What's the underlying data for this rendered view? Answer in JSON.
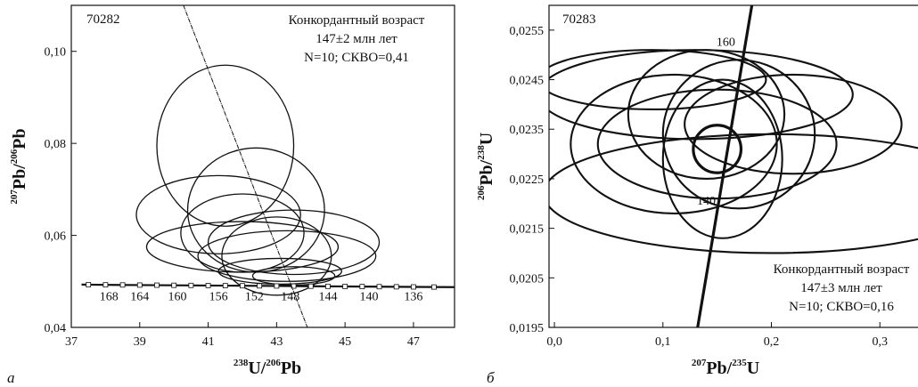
{
  "figure": {
    "panel_a_letter": "а",
    "panel_b_letter": "б"
  },
  "chart_data": [
    {
      "type": "scatter",
      "subtype": "Tera-Wasserburg concordia with error ellipses",
      "sample": "70282",
      "annotation": [
        "Конкордантный возраст",
        "147±2 млн лет",
        "N=10; СКВО=0,41"
      ],
      "xlabel": {
        "sup1": "238",
        "base1": "U/",
        "sup2": "206",
        "base2": "Pb"
      },
      "ylabel": {
        "sup1": "207",
        "base1": "Pb/",
        "sup2": "206",
        "base2": "Pb"
      },
      "xlim": [
        37,
        48.2
      ],
      "ylim": [
        0.04,
        0.11
      ],
      "xticks": [
        {
          "v": 37,
          "label": "37"
        },
        {
          "v": 39,
          "label": "39"
        },
        {
          "v": 41,
          "label": "41"
        },
        {
          "v": 43,
          "label": "43"
        },
        {
          "v": 45,
          "label": "45"
        },
        {
          "v": 47,
          "label": "47"
        }
      ],
      "yticks": [
        {
          "v": 0.04,
          "label": "0,04"
        },
        {
          "v": 0.06,
          "label": "0,06"
        },
        {
          "v": 0.08,
          "label": "0,08"
        },
        {
          "v": 0.1,
          "label": "0,10"
        }
      ],
      "concordia": {
        "points": [
          [
            37.3,
            0.0493
          ],
          [
            38.0,
            0.04925
          ],
          [
            39.0,
            0.0492
          ],
          [
            40.0,
            0.04915
          ],
          [
            41.0,
            0.0491
          ],
          [
            42.0,
            0.04905
          ],
          [
            43.0,
            0.049
          ],
          [
            44.0,
            0.04895
          ],
          [
            45.0,
            0.0489
          ],
          [
            46.0,
            0.04885
          ],
          [
            47.0,
            0.0488
          ],
          [
            48.2,
            0.04875
          ]
        ],
        "marker_x": [
          37.5,
          38.0,
          38.5,
          39.0,
          39.5,
          40.0,
          40.5,
          41.0,
          41.5,
          42.0,
          42.5,
          43.0,
          43.5,
          44.0,
          44.5,
          45.0,
          45.5,
          46.0,
          46.5,
          47.0,
          47.6
        ],
        "age_labels": [
          {
            "text": "168",
            "x": 38.1
          },
          {
            "text": "164",
            "x": 39.0
          },
          {
            "text": "160",
            "x": 40.1
          },
          {
            "text": "156",
            "x": 41.3
          },
          {
            "text": "152",
            "x": 42.35
          },
          {
            "text": "148",
            "x": 43.4
          },
          {
            "text": "144",
            "x": 44.5
          },
          {
            "text": "140",
            "x": 45.7
          },
          {
            "text": "136",
            "x": 47.0
          }
        ]
      },
      "regression_line": [
        [
          40.2,
          0.1115
        ],
        [
          43.9,
          0.04
        ]
      ],
      "ellipses": [
        {
          "cx": 41.5,
          "cy": 0.0795,
          "rx": 2.0,
          "ry": 0.0175
        },
        {
          "cx": 42.4,
          "cy": 0.0655,
          "rx": 2.0,
          "ry": 0.0135
        },
        {
          "cx": 41.3,
          "cy": 0.0645,
          "rx": 2.4,
          "ry": 0.0085
        },
        {
          "cx": 42.0,
          "cy": 0.0605,
          "rx": 1.8,
          "ry": 0.0085
        },
        {
          "cx": 42.0,
          "cy": 0.0575,
          "rx": 2.8,
          "ry": 0.0055
        },
        {
          "cx": 43.5,
          "cy": 0.0585,
          "rx": 2.5,
          "ry": 0.007
        },
        {
          "cx": 43.3,
          "cy": 0.0555,
          "rx": 2.6,
          "ry": 0.0055
        },
        {
          "cx": 43.0,
          "cy": 0.0555,
          "rx": 1.6,
          "ry": 0.0085
        },
        {
          "cx": 43.1,
          "cy": 0.0522,
          "rx": 1.8,
          "ry": 0.0028
        },
        {
          "cx": 43.5,
          "cy": 0.0512,
          "rx": 1.2,
          "ry": 0.002
        }
      ]
    },
    {
      "type": "scatter",
      "subtype": "Wetherill concordia with error ellipses",
      "sample": "70283",
      "annotation": [
        "Конкордантный возраст",
        "147±3 млн лет",
        "N=10; СКВО=0,16"
      ],
      "xlabel": {
        "sup1": "207",
        "base1": "Pb/",
        "sup2": "235",
        "base2": "U"
      },
      "ylabel": {
        "sup1": "206",
        "base1": "Pb/",
        "sup2": "238",
        "base2": "U"
      },
      "xlim": [
        -0.005,
        0.345
      ],
      "ylim": [
        0.0195,
        0.026
      ],
      "xticks": [
        {
          "v": 0.0,
          "label": "0,0"
        },
        {
          "v": 0.1,
          "label": "0,1"
        },
        {
          "v": 0.2,
          "label": "0,2"
        },
        {
          "v": 0.3,
          "label": "0,3"
        }
      ],
      "yticks": [
        {
          "v": 0.0195,
          "label": "0,0195"
        },
        {
          "v": 0.0205,
          "label": "0,0205"
        },
        {
          "v": 0.0215,
          "label": "0,0215"
        },
        {
          "v": 0.0225,
          "label": "0,0225"
        },
        {
          "v": 0.0235,
          "label": "0,0235"
        },
        {
          "v": 0.0245,
          "label": "0,0245"
        },
        {
          "v": 0.0255,
          "label": "0,0255"
        }
      ],
      "concordia": {
        "points": [
          [
            0.132,
            0.0195
          ],
          [
            0.182,
            0.026
          ]
        ],
        "age_labels": [
          {
            "text": "160",
            "x": 0.158,
            "y": 0.02518
          },
          {
            "text": "140",
            "x": 0.14,
            "y": 0.02198
          }
        ]
      },
      "ellipses": [
        {
          "cx": 0.09,
          "cy": 0.0245,
          "rx": 0.105,
          "ry": 0.0006
        },
        {
          "cx": 0.13,
          "cy": 0.0242,
          "rx": 0.145,
          "ry": 0.0009
        },
        {
          "cx": 0.2,
          "cy": 0.0222,
          "rx": 0.21,
          "ry": 0.0012
        },
        {
          "cx": 0.15,
          "cy": 0.0232,
          "rx": 0.11,
          "ry": 0.0011
        },
        {
          "cx": 0.14,
          "cy": 0.0238,
          "rx": 0.072,
          "ry": 0.0013
        },
        {
          "cx": 0.17,
          "cy": 0.0234,
          "rx": 0.07,
          "ry": 0.0015
        },
        {
          "cx": 0.155,
          "cy": 0.0229,
          "rx": 0.055,
          "ry": 0.0016
        },
        {
          "cx": 0.11,
          "cy": 0.0232,
          "rx": 0.095,
          "ry": 0.0014
        },
        {
          "cx": 0.22,
          "cy": 0.0236,
          "rx": 0.1,
          "ry": 0.001
        },
        {
          "cx": 0.15,
          "cy": 0.0231,
          "rx": 0.022,
          "ry": 0.00048
        }
      ]
    }
  ]
}
